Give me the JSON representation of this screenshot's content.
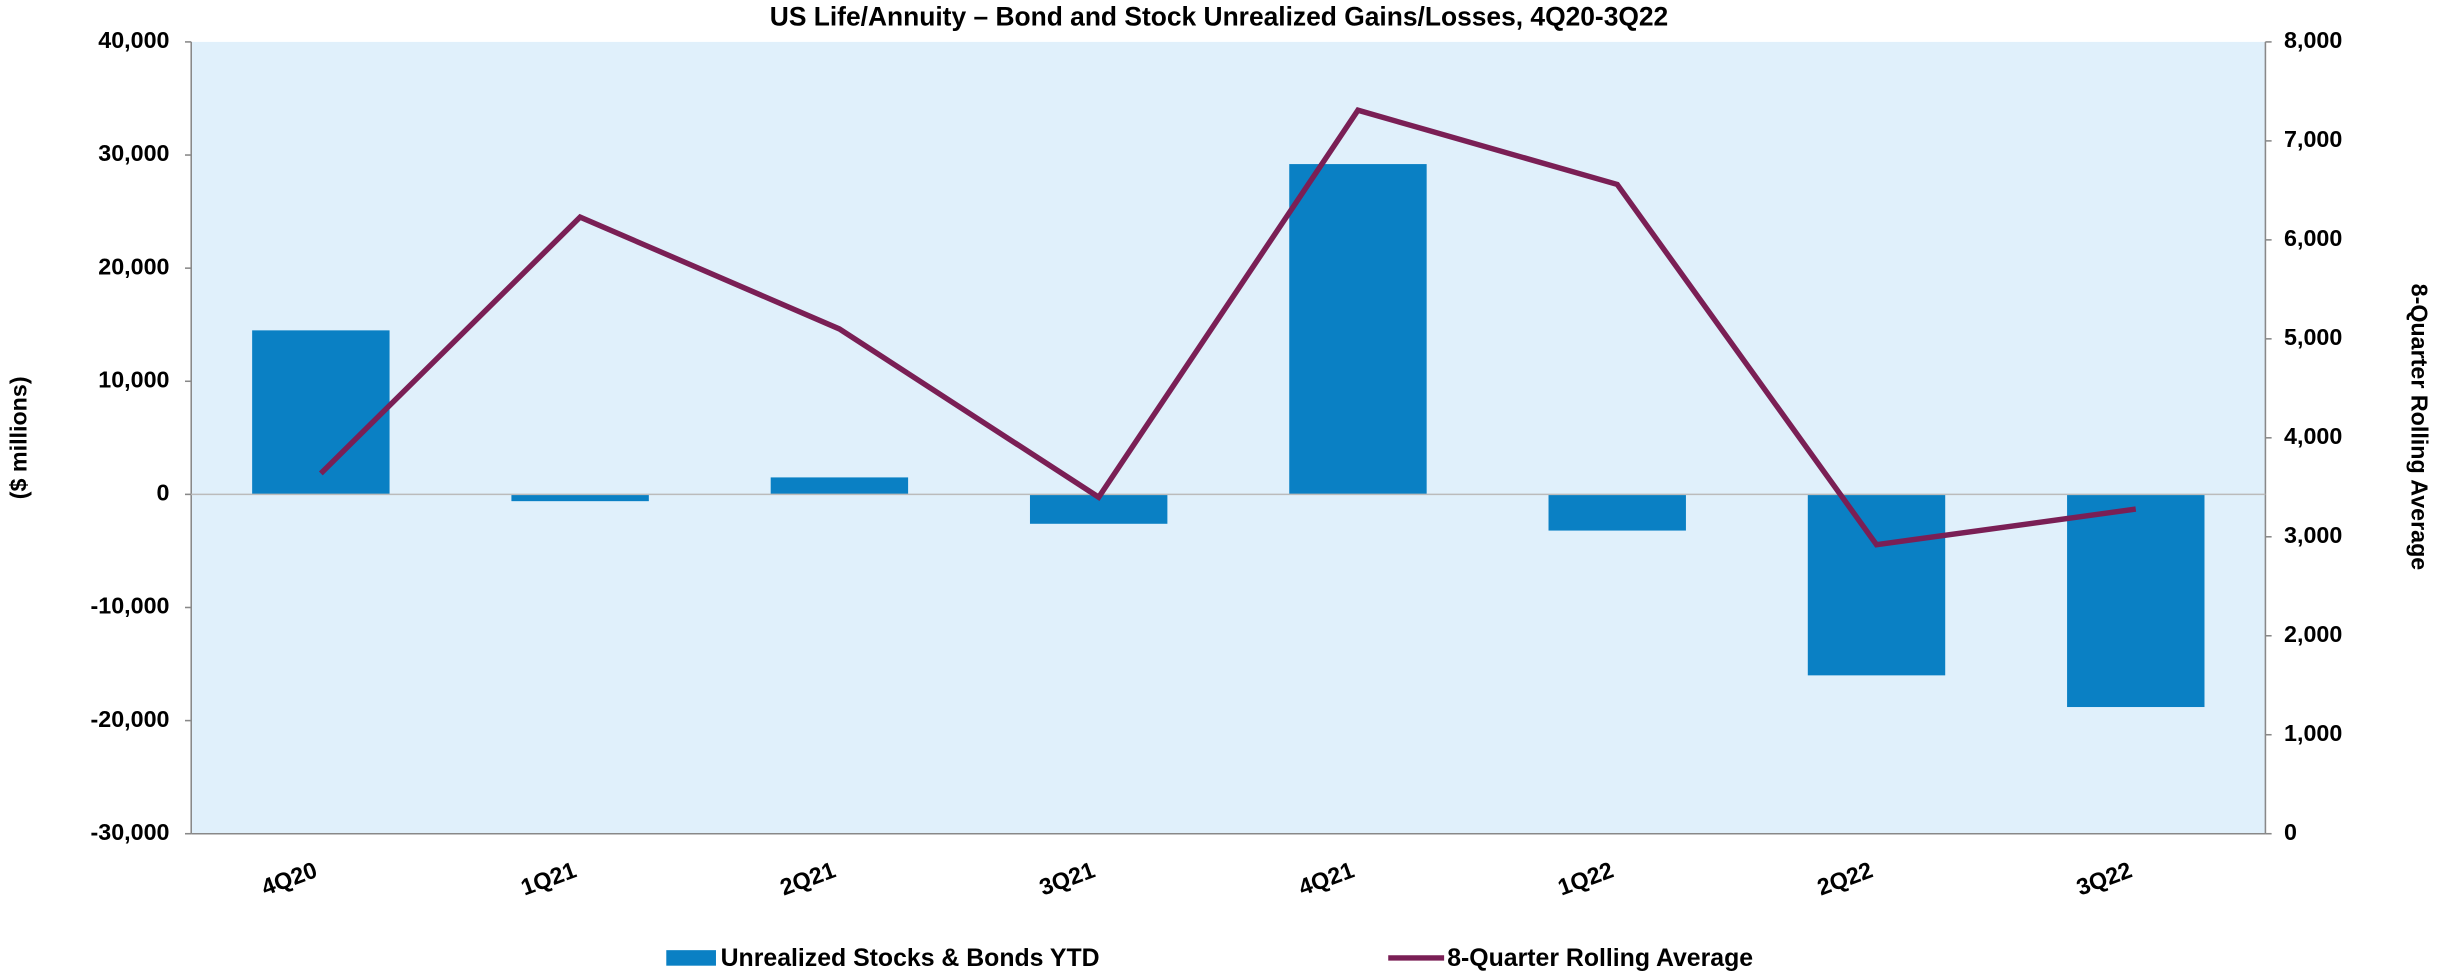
{
  "chart_data": {
    "type": "bar_line",
    "title": "US Life/Annuity – Bond and Stock Unrealized Gains/Losses, 4Q20-3Q22",
    "ylabel": "($ millions)",
    "y2label": "8-Quarter Rolling Average",
    "categories": [
      "4Q20",
      "1Q21",
      "2Q21",
      "3Q21",
      "4Q21",
      "1Q22",
      "2Q22",
      "3Q22"
    ],
    "series": [
      {
        "name": "Unrealized Stocks & Bonds YTD",
        "type": "bar",
        "color": "#0a80c4",
        "values": [
          14500,
          -600,
          1500,
          -2600,
          29200,
          -3200,
          -16000,
          -18800
        ]
      },
      {
        "name": "8-Quarter Rolling Average",
        "type": "line",
        "color": "#7a1f55",
        "axis": "y2",
        "values": [
          3640,
          6230,
          5100,
          3400,
          7310,
          6560,
          2920,
          3280
        ]
      }
    ],
    "ylim": [
      -30000,
      40000
    ],
    "yticks": [
      {
        "value": -30000,
        "label": "-30,000"
      },
      {
        "value": -20000,
        "label": "-20,000"
      },
      {
        "value": -10000,
        "label": "-10,000"
      },
      0,
      {
        "value": 10000,
        "label": "10,000"
      },
      {
        "value": 20000,
        "label": "20,000"
      },
      {
        "value": 30000,
        "label": "30,000"
      },
      {
        "value": 40000,
        "label": "40,000"
      }
    ],
    "y2lim": [
      0,
      8000
    ],
    "y2ticks": [
      0,
      {
        "value": 1000,
        "label": "1,000"
      },
      {
        "value": 2000,
        "label": "2,000"
      },
      {
        "value": 3000,
        "label": "3,000"
      },
      {
        "value": 4000,
        "label": "4,000"
      },
      {
        "value": 5000,
        "label": "5,000"
      },
      {
        "value": 6000,
        "label": "6,000"
      },
      {
        "value": 7000,
        "label": "7,000"
      },
      {
        "value": 8000,
        "label": "8,000"
      }
    ],
    "legend": "bottom"
  }
}
